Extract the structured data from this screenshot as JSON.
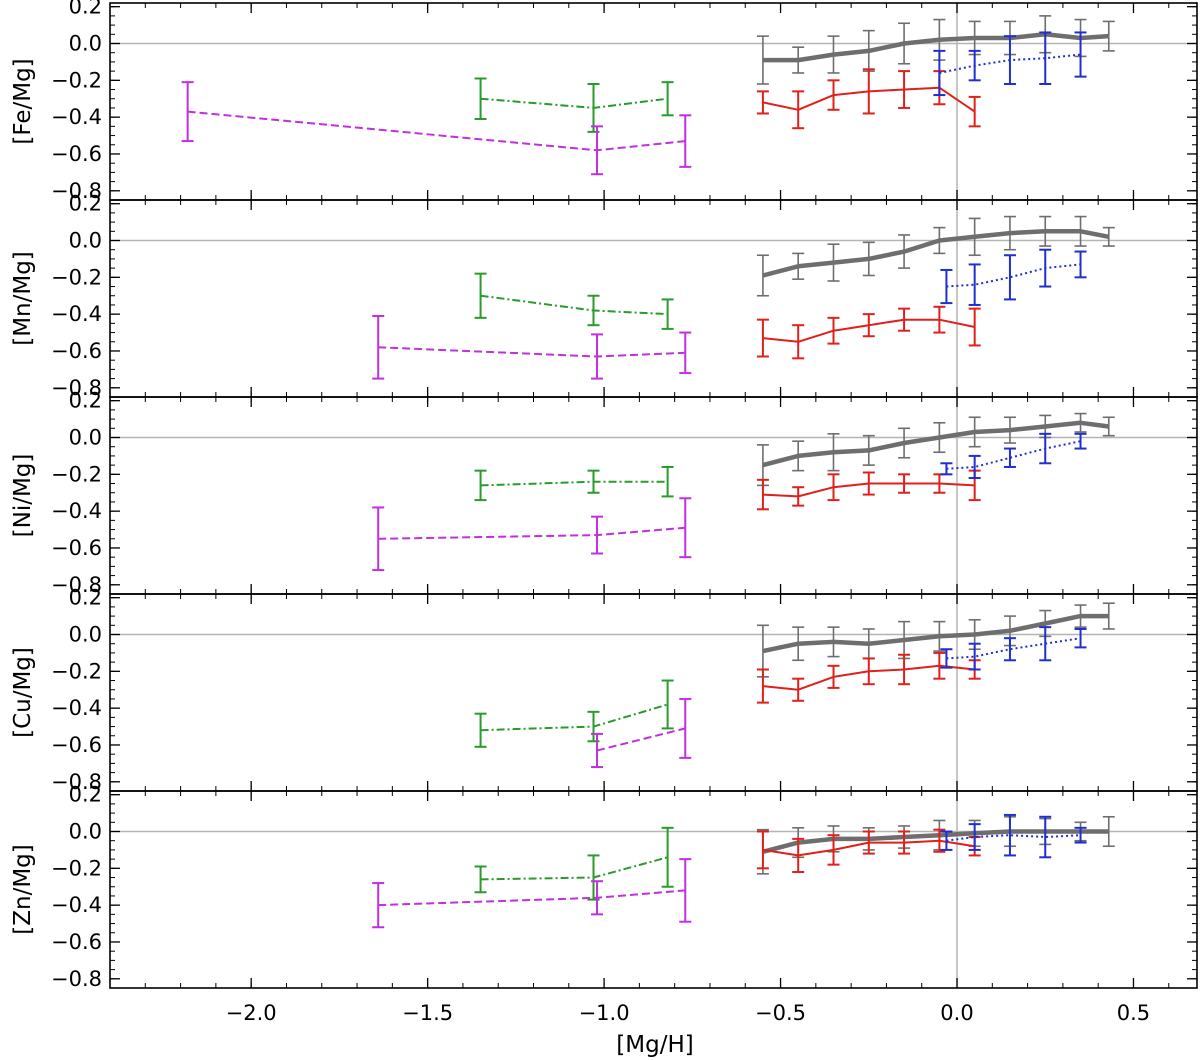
{
  "chart_data": {
    "type": "line",
    "xlabel": "[Mg/H]",
    "xlim": [
      -2.4,
      0.68
    ],
    "ylim": [
      -0.85,
      0.22
    ],
    "x_ticks": [
      -2.0,
      -1.5,
      -1.0,
      -0.5,
      0.0,
      0.5
    ],
    "x_tick_labels": [
      "−2.0",
      "−1.5",
      "−1.0",
      "−0.5",
      "0.0",
      "0.5"
    ],
    "y_ticks": [
      0.2,
      0.0,
      -0.2,
      -0.4,
      -0.6,
      -0.8
    ],
    "y_tick_labels": [
      "0.2",
      "0.0",
      "−0.2",
      "−0.4",
      "−0.6",
      "−0.8"
    ],
    "reference_lines": {
      "y": 0.0,
      "x": 0.0
    },
    "styles": {
      "gray": {
        "color": "#6e6e6e",
        "width": 4.5,
        "dash": ""
      },
      "red": {
        "color": "#e0201b",
        "width": 2,
        "dash": ""
      },
      "blue": {
        "color": "#1f2fd0",
        "width": 2,
        "dash": "2 3"
      },
      "green": {
        "color": "#2a9a2a",
        "width": 2,
        "dash": "8 3 2 3"
      },
      "purple": {
        "color": "#c030e0",
        "width": 2,
        "dash": "8 4"
      }
    },
    "panels": [
      {
        "ylabel": "[Fe/Mg]",
        "series": [
          {
            "name": "gray",
            "x": [
              -0.55,
              -0.45,
              -0.35,
              -0.25,
              -0.15,
              -0.05,
              0.05,
              0.15,
              0.25,
              0.35,
              0.43
            ],
            "y": [
              -0.09,
              -0.09,
              -0.06,
              -0.04,
              0.0,
              0.02,
              0.03,
              0.03,
              0.05,
              0.03,
              0.04
            ],
            "err": [
              0.13,
              0.07,
              0.1,
              0.11,
              0.11,
              0.11,
              0.09,
              0.09,
              0.1,
              0.1,
              0.08
            ]
          },
          {
            "name": "red",
            "x": [
              -0.55,
              -0.45,
              -0.35,
              -0.25,
              -0.15,
              -0.05,
              0.05
            ],
            "y": [
              -0.32,
              -0.36,
              -0.28,
              -0.26,
              -0.25,
              -0.24,
              -0.37
            ],
            "err": [
              0.06,
              0.1,
              0.08,
              0.12,
              0.1,
              0.09,
              0.08
            ]
          },
          {
            "name": "blue",
            "x": [
              -0.05,
              0.05,
              0.15,
              0.25,
              0.35
            ],
            "y": [
              -0.16,
              -0.12,
              -0.09,
              -0.08,
              -0.06
            ],
            "err": [
              0.12,
              0.08,
              0.13,
              0.14,
              0.12
            ]
          },
          {
            "name": "green",
            "x": [
              -1.35,
              -1.03,
              -0.82
            ],
            "y": [
              -0.3,
              -0.35,
              -0.3
            ],
            "err": [
              0.11,
              0.13,
              0.09
            ]
          },
          {
            "name": "purple",
            "x": [
              -2.18,
              -1.02,
              -0.77
            ],
            "y": [
              -0.37,
              -0.58,
              -0.53
            ],
            "err": [
              0.16,
              0.13,
              0.14
            ]
          }
        ]
      },
      {
        "ylabel": "[Mn/Mg]",
        "series": [
          {
            "name": "gray",
            "x": [
              -0.55,
              -0.45,
              -0.35,
              -0.25,
              -0.15,
              -0.05,
              0.05,
              0.15,
              0.25,
              0.35,
              0.43
            ],
            "y": [
              -0.19,
              -0.14,
              -0.12,
              -0.1,
              -0.06,
              0.0,
              0.02,
              0.04,
              0.05,
              0.05,
              0.02
            ],
            "err": [
              0.11,
              0.07,
              0.1,
              0.09,
              0.09,
              0.07,
              0.1,
              0.09,
              0.08,
              0.08,
              0.05
            ]
          },
          {
            "name": "red",
            "x": [
              -0.55,
              -0.45,
              -0.35,
              -0.25,
              -0.15,
              -0.05,
              0.05
            ],
            "y": [
              -0.53,
              -0.55,
              -0.49,
              -0.46,
              -0.43,
              -0.43,
              -0.47
            ],
            "err": [
              0.1,
              0.09,
              0.07,
              0.06,
              0.06,
              0.07,
              0.1
            ]
          },
          {
            "name": "blue",
            "x": [
              -0.03,
              0.05,
              0.15,
              0.25,
              0.35
            ],
            "y": [
              -0.25,
              -0.24,
              -0.2,
              -0.15,
              -0.13
            ],
            "err": [
              0.09,
              0.11,
              0.12,
              0.1,
              0.07
            ]
          },
          {
            "name": "green",
            "x": [
              -1.35,
              -1.03,
              -0.82
            ],
            "y": [
              -0.3,
              -0.38,
              -0.4
            ],
            "err": [
              0.12,
              0.08,
              0.08
            ]
          },
          {
            "name": "purple",
            "x": [
              -1.64,
              -1.02,
              -0.77
            ],
            "y": [
              -0.58,
              -0.63,
              -0.61
            ],
            "err": [
              0.17,
              0.12,
              0.11
            ]
          }
        ]
      },
      {
        "ylabel": "[Ni/Mg]",
        "series": [
          {
            "name": "gray",
            "x": [
              -0.55,
              -0.45,
              -0.35,
              -0.25,
              -0.15,
              -0.05,
              0.05,
              0.15,
              0.25,
              0.35,
              0.43
            ],
            "y": [
              -0.15,
              -0.1,
              -0.08,
              -0.07,
              -0.03,
              0.0,
              0.03,
              0.04,
              0.06,
              0.08,
              0.06
            ],
            "err": [
              0.11,
              0.08,
              0.1,
              0.08,
              0.08,
              0.08,
              0.08,
              0.07,
              0.06,
              0.05,
              0.05
            ]
          },
          {
            "name": "red",
            "x": [
              -0.55,
              -0.45,
              -0.35,
              -0.25,
              -0.15,
              -0.05,
              0.05
            ],
            "y": [
              -0.31,
              -0.32,
              -0.27,
              -0.25,
              -0.25,
              -0.25,
              -0.26
            ],
            "err": [
              0.08,
              0.05,
              0.07,
              0.06,
              0.05,
              0.05,
              0.08
            ]
          },
          {
            "name": "blue",
            "x": [
              -0.03,
              0.05,
              0.15,
              0.25,
              0.35
            ],
            "y": [
              -0.17,
              -0.16,
              -0.11,
              -0.06,
              -0.02
            ],
            "err": [
              0.03,
              0.06,
              0.05,
              0.08,
              0.04
            ]
          },
          {
            "name": "green",
            "x": [
              -1.35,
              -1.03,
              -0.82
            ],
            "y": [
              -0.26,
              -0.24,
              -0.24
            ],
            "err": [
              0.08,
              0.06,
              0.08
            ]
          },
          {
            "name": "purple",
            "x": [
              -1.64,
              -1.02,
              -0.77
            ],
            "y": [
              -0.55,
              -0.53,
              -0.49
            ],
            "err": [
              0.17,
              0.1,
              0.16
            ]
          }
        ]
      },
      {
        "ylabel": "[Cu/Mg]",
        "series": [
          {
            "name": "gray",
            "x": [
              -0.55,
              -0.45,
              -0.35,
              -0.25,
              -0.15,
              -0.05,
              0.05,
              0.15,
              0.25,
              0.35,
              0.43
            ],
            "y": [
              -0.09,
              -0.05,
              -0.04,
              -0.05,
              -0.03,
              -0.01,
              0.0,
              0.02,
              0.06,
              0.1,
              0.1
            ],
            "err": [
              0.14,
              0.09,
              0.08,
              0.08,
              0.1,
              0.08,
              0.08,
              0.08,
              0.07,
              0.06,
              0.07
            ]
          },
          {
            "name": "red",
            "x": [
              -0.55,
              -0.45,
              -0.35,
              -0.25,
              -0.15,
              -0.05,
              0.05
            ],
            "y": [
              -0.28,
              -0.3,
              -0.23,
              -0.2,
              -0.19,
              -0.17,
              -0.19
            ],
            "err": [
              0.09,
              0.06,
              0.06,
              0.07,
              0.08,
              0.07,
              0.05
            ]
          },
          {
            "name": "blue",
            "x": [
              -0.03,
              0.05,
              0.15,
              0.25,
              0.35
            ],
            "y": [
              -0.13,
              -0.12,
              -0.08,
              -0.05,
              -0.02
            ],
            "err": [
              0.05,
              0.07,
              0.06,
              0.09,
              0.05
            ]
          },
          {
            "name": "green",
            "x": [
              -1.35,
              -1.03,
              -0.82
            ],
            "y": [
              -0.52,
              -0.5,
              -0.38
            ],
            "err": [
              0.09,
              0.08,
              0.13
            ]
          },
          {
            "name": "purple",
            "x": [
              -1.02,
              -0.77
            ],
            "y": [
              -0.63,
              -0.51
            ],
            "err": [
              0.09,
              0.16
            ]
          }
        ]
      },
      {
        "ylabel": "[Zn/Mg]",
        "series": [
          {
            "name": "gray",
            "x": [
              -0.55,
              -0.45,
              -0.35,
              -0.25,
              -0.15,
              -0.05,
              0.05,
              0.15,
              0.25,
              0.35,
              0.43
            ],
            "y": [
              -0.11,
              -0.06,
              -0.04,
              -0.04,
              -0.03,
              -0.02,
              -0.01,
              0.0,
              0.0,
              0.0,
              0.0
            ],
            "err": [
              0.12,
              0.08,
              0.07,
              0.06,
              0.06,
              0.08,
              0.07,
              0.08,
              0.07,
              0.05,
              0.08
            ]
          },
          {
            "name": "red",
            "x": [
              -0.55,
              -0.45,
              -0.35,
              -0.25,
              -0.15,
              -0.05,
              0.05
            ],
            "y": [
              -0.1,
              -0.13,
              -0.1,
              -0.06,
              -0.06,
              -0.05,
              -0.08
            ],
            "err": [
              0.1,
              0.09,
              0.08,
              0.06,
              0.06,
              0.06,
              0.05
            ]
          },
          {
            "name": "blue",
            "x": [
              -0.03,
              0.05,
              0.15,
              0.25,
              0.35
            ],
            "y": [
              -0.05,
              -0.03,
              -0.02,
              -0.03,
              -0.02
            ],
            "err": [
              0.05,
              0.07,
              0.11,
              0.11,
              0.04
            ]
          },
          {
            "name": "green",
            "x": [
              -1.35,
              -1.03,
              -0.82
            ],
            "y": [
              -0.26,
              -0.25,
              -0.14
            ],
            "err": [
              0.07,
              0.12,
              0.16
            ]
          },
          {
            "name": "purple",
            "x": [
              -1.64,
              -1.02,
              -0.77
            ],
            "y": [
              -0.4,
              -0.36,
              -0.32
            ],
            "err": [
              0.12,
              0.09,
              0.17
            ]
          }
        ]
      }
    ]
  }
}
